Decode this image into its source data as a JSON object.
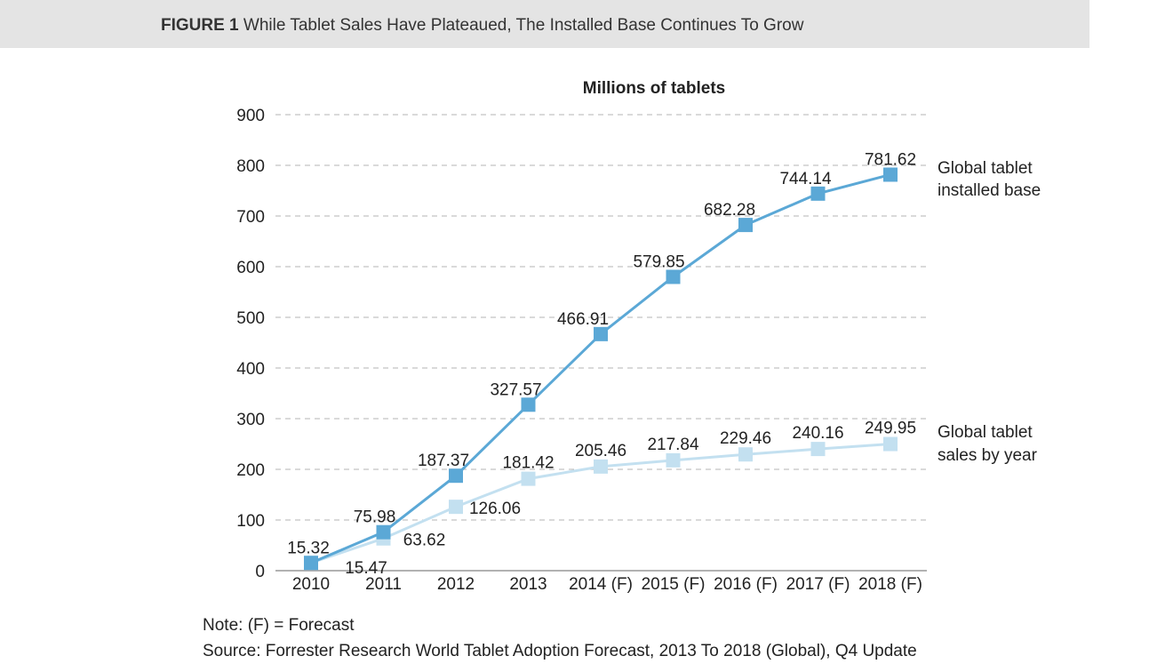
{
  "figure": {
    "label": "FIGURE 1",
    "title": "While Tablet Sales Have Plateaued, The Installed Base Continues To Grow"
  },
  "notes": {
    "note": "Note: (F) = Forecast",
    "source": "Source: Forrester Research World Tablet Adoption Forecast, 2013 To 2018 (Global), Q4 Update"
  },
  "chart_data": {
    "type": "line",
    "title": "Millions of tablets",
    "categories": [
      "2010",
      "2011",
      "2012",
      "2013",
      "2014 (F)",
      "2015 (F)",
      "2016 (F)",
      "2017 (F)",
      "2018 (F)"
    ],
    "ylim": [
      0,
      900
    ],
    "yticks": [
      0,
      100,
      200,
      300,
      400,
      500,
      600,
      700,
      800,
      900
    ],
    "grid": true,
    "series": [
      {
        "name": "Global tablet installed base",
        "name_lines": [
          "Global tablet",
          "installed base"
        ],
        "color": "#5ba8d6",
        "values": [
          15.32,
          75.98,
          187.37,
          327.57,
          466.91,
          579.85,
          682.28,
          744.14,
          781.62
        ],
        "labels": [
          "15.32",
          "75.98",
          "187.37",
          "327.57",
          "466.91",
          "579.85",
          "682.28",
          "744.14",
          "781.62"
        ]
      },
      {
        "name": "Global tablet sales by year",
        "name_lines": [
          "Global tablet",
          "sales by year"
        ],
        "color": "#c3e0f0",
        "values": [
          15.47,
          63.62,
          126.06,
          181.42,
          205.46,
          217.84,
          229.46,
          240.16,
          249.95
        ],
        "labels": [
          "15.47",
          "63.62",
          "126.06",
          "181.42",
          "205.46",
          "217.84",
          "229.46",
          "240.16",
          "249.95"
        ]
      }
    ]
  }
}
